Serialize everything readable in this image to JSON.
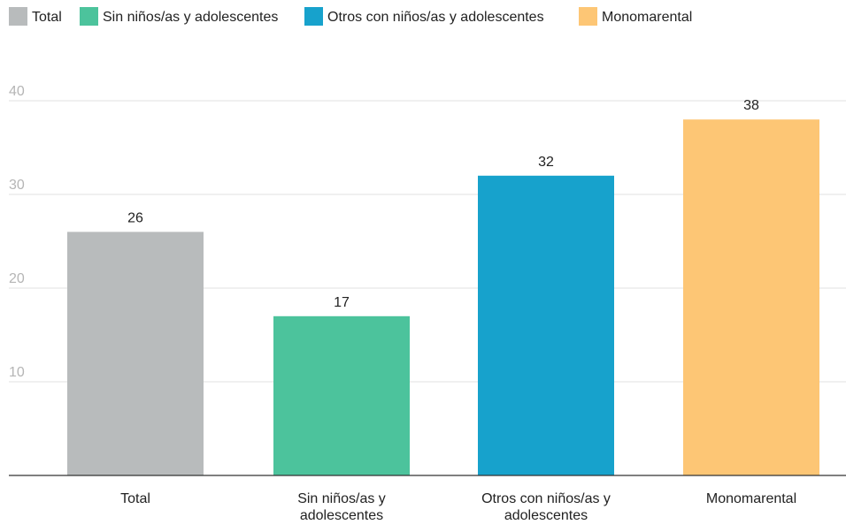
{
  "chart_data": {
    "type": "bar",
    "title": "",
    "xlabel": "",
    "ylabel": "",
    "categories": [
      "Total",
      "Sin niños/as y adolescentes",
      "Otros con niños/as y adolescentes",
      "Monomarental"
    ],
    "category_label_lines": [
      [
        "Total"
      ],
      [
        "Sin niños/as y",
        "adolescentes"
      ],
      [
        "Otros con niños/as y",
        "adolescentes"
      ],
      [
        "Monomarental"
      ]
    ],
    "values": [
      26,
      17,
      32,
      38
    ],
    "value_labels": [
      "26",
      "17",
      "32",
      "38"
    ],
    "colors": [
      "#b8bbbc",
      "#4cc39c",
      "#17a2cc",
      "#fdc675"
    ],
    "ylim": [
      0,
      40
    ],
    "yticks": [
      10,
      20,
      30,
      40
    ],
    "ytick_labels": [
      "10",
      "20",
      "30",
      "40"
    ],
    "grid": true,
    "legend": {
      "placement": "top-left",
      "entries": [
        "Total",
        "Sin niños/as y adolescentes",
        "Otros con niños/as y adolescentes",
        "Monomarental"
      ]
    }
  }
}
